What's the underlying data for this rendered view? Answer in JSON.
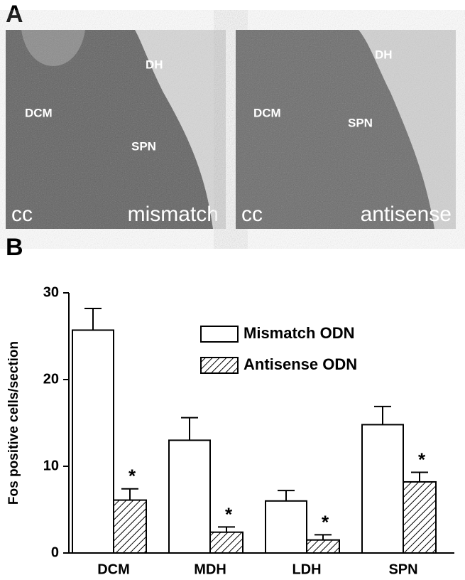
{
  "panel_a": {
    "label": "A",
    "images": [
      {
        "labels": {
          "dh": "DH",
          "dcm": "DCM",
          "spn": "SPN",
          "cc": "cc",
          "condition": "mismatch"
        }
      },
      {
        "labels": {
          "dh": "DH",
          "dcm": "DCM",
          "spn": "SPN",
          "cc": "cc",
          "condition": "antisense"
        }
      }
    ]
  },
  "chart_data": {
    "type": "bar",
    "panel_label": "B",
    "y_label": "Fos positive cells/section",
    "categories": [
      "DCM",
      "MDH",
      "LDH",
      "SPN"
    ],
    "series": [
      {
        "name": "Mismatch ODN",
        "color": "#ffffff",
        "hatch": false,
        "values": [
          25.7,
          13,
          6.0,
          14.8
        ],
        "errors": [
          2.5,
          2.6,
          1.2,
          2.1
        ]
      },
      {
        "name": "Antisense ODN",
        "color": "#000000",
        "hatch": true,
        "values": [
          6.1,
          2.4,
          1.5,
          8.2
        ],
        "errors": [
          1.3,
          0.6,
          0.6,
          1.1
        ],
        "annotations": [
          "*",
          "*",
          "*",
          "*"
        ]
      }
    ],
    "ylim": [
      0,
      30
    ],
    "yticks": [
      0,
      10,
      20,
      30
    ],
    "grid": false
  }
}
